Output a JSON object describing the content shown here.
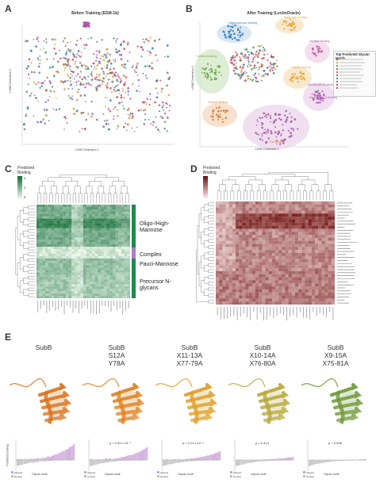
{
  "panels": {
    "A": {
      "letter": "A",
      "title": "Before Training (ESM-1b)",
      "xlabel": "t-SNE Dimension 1",
      "ylabel": "t-SNE Dimension 2"
    },
    "B": {
      "letter": "B",
      "title": "After Training (LectinOracle)",
      "xlabel": "t-SNE Dimension 1",
      "ylabel": "t-SNE Dimension 2",
      "clusters": [
        {
          "label": "Oligomannose binding",
          "color": "#2e7ab8"
        },
        {
          "label": "Sialic acid binding",
          "color": "#e8a33a"
        },
        {
          "label": "GalNAc binding",
          "color": "#6fa84a"
        },
        {
          "label": "Neu5Ac binding",
          "color": "#c2529b"
        },
        {
          "label": "Fucose binding",
          "color": "#e07b2e"
        },
        {
          "label": "Sulfate binding",
          "color": "#e8a33a"
        },
        {
          "label": "Neu5Ac(a2-6) binding",
          "color": "#a855a8"
        },
        {
          "label": "Fuc binding",
          "color": "#e07b2e"
        },
        {
          "label": "Neu5Ac(a2-3) binding",
          "color": "#a855a8"
        }
      ],
      "legend_title": "Top Predicted Glycan Motifs"
    },
    "C": {
      "letter": "C",
      "legend_title": "Predicted Binding",
      "legend_ticks": [
        "4",
        "2",
        "0"
      ],
      "groups": [
        {
          "label": "Oligo-/High-Mannose",
          "color": "#1e8a4c"
        },
        {
          "label": "Complex",
          "color": "#b07cc6"
        },
        {
          "label": "Pauci-Mannose",
          "color": "#1e8a4c"
        },
        {
          "label": "Precursor N-glycans",
          "color": "#1e8a4c"
        }
      ]
    },
    "D": {
      "letter": "D",
      "legend_title": "Predicted Binding"
    },
    "E": {
      "letter": "E",
      "variants": [
        {
          "line1": "SubB",
          "line2": "",
          "line3": "",
          "color": "#d9731c",
          "pval": ""
        },
        {
          "line1": "SubB",
          "line2": "S12A",
          "line3": "Y78A",
          "color": "#e08220",
          "pval": "p = 9.92 x 10⁻⁶"
        },
        {
          "line1": "SubB",
          "line2": "X11-13A",
          "line3": "X77-79A",
          "color": "#e0a028",
          "pval": "p = 1.01 x 10⁻⁴"
        },
        {
          "line1": "SubB",
          "line2": "X10-14A",
          "line3": "X76-80A",
          "color": "#b8a83a",
          "pval": "p = 0.414"
        },
        {
          "line1": "SubB",
          "line2": "X9-15A",
          "line3": "X75-81A",
          "color": "#6f9a3a",
          "pval": "p = 0.998"
        }
      ],
      "bar_xlabel": "Glycan motif",
      "bar_ylabel": "Predicted binding",
      "legend": [
        {
          "label": "Aligned",
          "color": "#c9a0d6"
        },
        {
          "label": "Neutral",
          "color": "#bdbdbd"
        }
      ]
    }
  },
  "colors": {
    "green_dark": "#0f6b35",
    "green_light": "#eaf6ea",
    "red_dark": "#6b0a0a",
    "red_light": "#fdecea",
    "purple": "#b07cc6"
  }
}
